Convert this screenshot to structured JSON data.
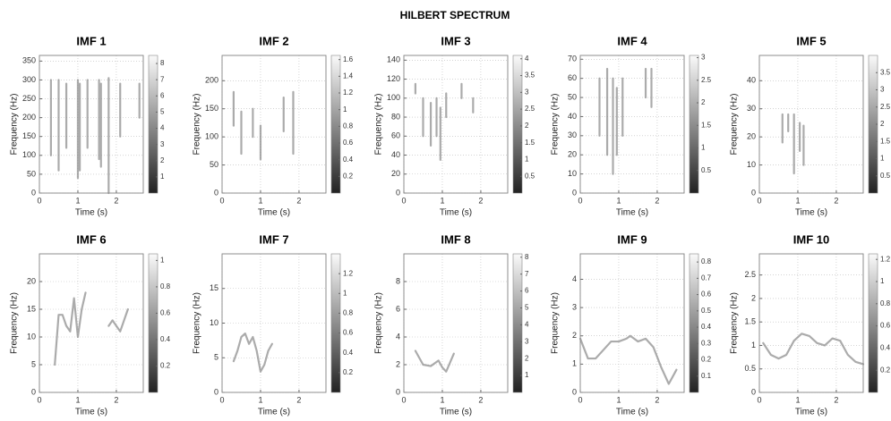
{
  "title": "HILBERT SPECTRUM",
  "chart_data": [
    {
      "type": "line",
      "title": "IMF 1",
      "xlabel": "Time (s)",
      "ylabel": "Frequency (Hz)",
      "xlim": [
        0,
        2.7
      ],
      "xticks": [
        0,
        1,
        2
      ],
      "ylim": [
        0,
        365
      ],
      "yticks": [
        0,
        50,
        100,
        150,
        200,
        250,
        300,
        350
      ],
      "grid": true,
      "trace_color": "#777",
      "colorbar": {
        "lim": [
          0,
          8.5
        ],
        "ticks": [
          1,
          2,
          3,
          4,
          5,
          6,
          7,
          8
        ]
      },
      "traces": [
        {
          "x": [
            0.3,
            0.3
          ],
          "y": [
            100,
            300
          ]
        },
        {
          "x": [
            0.5,
            0.5
          ],
          "y": [
            60,
            300
          ]
        },
        {
          "x": [
            0.7,
            0.7
          ],
          "y": [
            120,
            290
          ]
        },
        {
          "x": [
            1.0,
            1.0
          ],
          "y": [
            40,
            300
          ]
        },
        {
          "x": [
            1.05,
            1.05
          ],
          "y": [
            60,
            290
          ]
        },
        {
          "x": [
            1.25,
            1.25
          ],
          "y": [
            120,
            300
          ]
        },
        {
          "x": [
            1.55,
            1.55
          ],
          "y": [
            90,
            300
          ]
        },
        {
          "x": [
            1.6,
            1.6
          ],
          "y": [
            70,
            290
          ]
        },
        {
          "x": [
            1.8,
            1.8
          ],
          "y": [
            0,
            305
          ]
        },
        {
          "x": [
            2.1,
            2.1
          ],
          "y": [
            150,
            290
          ]
        },
        {
          "x": [
            2.6,
            2.6
          ],
          "y": [
            200,
            290
          ]
        }
      ]
    },
    {
      "type": "line",
      "title": "IMF 2",
      "xlabel": "Time (s)",
      "ylabel": "Frequency (Hz)",
      "xlim": [
        0,
        2.7
      ],
      "xticks": [
        0,
        1,
        2
      ],
      "ylim": [
        0,
        245
      ],
      "yticks": [
        0,
        50,
        100,
        150,
        200
      ],
      "grid": true,
      "trace_color": "#777",
      "colorbar": {
        "lim": [
          0,
          1.65
        ],
        "ticks": [
          0.2,
          0.4,
          0.6,
          0.8,
          1,
          1.2,
          1.4,
          1.6
        ]
      },
      "traces": [
        {
          "x": [
            0.3,
            0.3
          ],
          "y": [
            120,
            180
          ]
        },
        {
          "x": [
            0.5,
            0.5
          ],
          "y": [
            70,
            145
          ]
        },
        {
          "x": [
            0.8,
            0.8
          ],
          "y": [
            100,
            150
          ]
        },
        {
          "x": [
            1.0,
            1.0
          ],
          "y": [
            60,
            120
          ]
        },
        {
          "x": [
            1.6,
            1.6
          ],
          "y": [
            110,
            170
          ]
        },
        {
          "x": [
            1.85,
            1.85
          ],
          "y": [
            70,
            180
          ]
        }
      ]
    },
    {
      "type": "line",
      "title": "IMF 3",
      "xlabel": "Time (s)",
      "ylabel": "Frequency (Hz)",
      "xlim": [
        0,
        2.7
      ],
      "xticks": [
        0,
        1,
        2
      ],
      "ylim": [
        0,
        145
      ],
      "yticks": [
        0,
        20,
        40,
        60,
        80,
        100,
        120,
        140
      ],
      "grid": true,
      "trace_color": "#777",
      "colorbar": {
        "lim": [
          0,
          4.1
        ],
        "ticks": [
          0.5,
          1,
          1.5,
          2,
          2.5,
          3,
          3.5,
          4
        ]
      },
      "traces": [
        {
          "x": [
            0.3,
            0.3
          ],
          "y": [
            105,
            115
          ]
        },
        {
          "x": [
            0.5,
            0.5
          ],
          "y": [
            60,
            100
          ]
        },
        {
          "x": [
            0.7,
            0.7
          ],
          "y": [
            50,
            95
          ]
        },
        {
          "x": [
            0.85,
            0.85
          ],
          "y": [
            60,
            100
          ]
        },
        {
          "x": [
            0.95,
            0.95
          ],
          "y": [
            35,
            90
          ]
        },
        {
          "x": [
            1.1,
            1.1
          ],
          "y": [
            80,
            105
          ]
        },
        {
          "x": [
            1.5,
            1.5
          ],
          "y": [
            100,
            115
          ]
        },
        {
          "x": [
            1.8,
            1.8
          ],
          "y": [
            85,
            100
          ]
        }
      ]
    },
    {
      "type": "line",
      "title": "IMF 4",
      "xlabel": "Time (s)",
      "ylabel": "Frequency (Hz)",
      "xlim": [
        0,
        2.7
      ],
      "xticks": [
        0,
        1,
        2
      ],
      "ylim": [
        0,
        72
      ],
      "yticks": [
        0,
        10,
        20,
        30,
        40,
        50,
        60,
        70
      ],
      "grid": true,
      "trace_color": "#777",
      "colorbar": {
        "lim": [
          0,
          3.05
        ],
        "ticks": [
          0.5,
          1,
          1.5,
          2,
          2.5,
          3
        ]
      },
      "traces": [
        {
          "x": [
            0.5,
            0.5
          ],
          "y": [
            30,
            60
          ]
        },
        {
          "x": [
            0.7,
            0.7
          ],
          "y": [
            20,
            65
          ]
        },
        {
          "x": [
            0.85,
            0.85
          ],
          "y": [
            10,
            60
          ]
        },
        {
          "x": [
            0.95,
            0.95
          ],
          "y": [
            20,
            55
          ]
        },
        {
          "x": [
            1.1,
            1.1
          ],
          "y": [
            30,
            60
          ]
        },
        {
          "x": [
            1.7,
            1.7
          ],
          "y": [
            50,
            65
          ]
        },
        {
          "x": [
            1.85,
            1.85
          ],
          "y": [
            45,
            65
          ]
        }
      ]
    },
    {
      "type": "line",
      "title": "IMF 5",
      "xlabel": "Time (s)",
      "ylabel": "Frequency (Hz)",
      "xlim": [
        0,
        2.7
      ],
      "xticks": [
        0,
        1,
        2
      ],
      "ylim": [
        0,
        49
      ],
      "yticks": [
        0,
        10,
        20,
        30,
        40
      ],
      "grid": true,
      "trace_color": "#777",
      "colorbar": {
        "lim": [
          0,
          4
        ],
        "ticks": [
          0.5,
          1,
          1.5,
          2,
          2.5,
          3,
          3.5
        ]
      },
      "traces": [
        {
          "x": [
            0.6,
            0.6
          ],
          "y": [
            18,
            28
          ]
        },
        {
          "x": [
            0.75,
            0.75
          ],
          "y": [
            22,
            28
          ]
        },
        {
          "x": [
            0.9,
            0.9
          ],
          "y": [
            7,
            28
          ]
        },
        {
          "x": [
            1.05,
            1.05
          ],
          "y": [
            15,
            25
          ]
        },
        {
          "x": [
            1.15,
            1.15
          ],
          "y": [
            10,
            24
          ]
        }
      ]
    },
    {
      "type": "line",
      "title": "IMF 6",
      "xlabel": "Time (s)",
      "ylabel": "Frequency (Hz)",
      "xlim": [
        0,
        2.7
      ],
      "xticks": [
        0,
        1,
        2
      ],
      "ylim": [
        0,
        25
      ],
      "yticks": [
        0,
        5,
        10,
        15,
        20
      ],
      "grid": true,
      "trace_color": "#777",
      "colorbar": {
        "lim": [
          0,
          1.05
        ],
        "ticks": [
          0.2,
          0.4,
          0.6,
          0.8,
          1
        ]
      },
      "traces": [
        {
          "x": [
            0.4,
            0.5,
            0.6,
            0.7,
            0.8,
            0.9,
            1.0,
            1.1,
            1.2
          ],
          "y": [
            5,
            14,
            14,
            12,
            11,
            17,
            10,
            15,
            18
          ]
        },
        {
          "x": [
            1.8,
            1.9,
            2.0,
            2.1,
            2.3
          ],
          "y": [
            12,
            13,
            12,
            11,
            15
          ]
        }
      ]
    },
    {
      "type": "line",
      "title": "IMF 7",
      "xlabel": "Time (s)",
      "ylabel": "Frequency (Hz)",
      "xlim": [
        0,
        2.7
      ],
      "xticks": [
        0,
        1,
        2
      ],
      "ylim": [
        0,
        20
      ],
      "yticks": [
        0,
        5,
        10,
        15
      ],
      "grid": true,
      "trace_color": "#777",
      "colorbar": {
        "lim": [
          0,
          1.4
        ],
        "ticks": [
          0.2,
          0.4,
          0.6,
          0.8,
          1,
          1.2
        ]
      },
      "traces": [
        {
          "x": [
            0.3,
            0.4,
            0.5,
            0.6,
            0.7,
            0.8,
            0.9,
            1.0,
            1.1,
            1.2,
            1.3
          ],
          "y": [
            4.5,
            6,
            8,
            8.5,
            7,
            8,
            6,
            3,
            4,
            6,
            7
          ]
        }
      ]
    },
    {
      "type": "line",
      "title": "IMF 8",
      "xlabel": "Time (s)",
      "ylabel": "Frequency (Hz)",
      "xlim": [
        0,
        2.7
      ],
      "xticks": [
        0,
        1,
        2
      ],
      "ylim": [
        0,
        10
      ],
      "yticks": [
        0,
        2,
        4,
        6,
        8
      ],
      "grid": true,
      "trace_color": "#777",
      "colorbar": {
        "lim": [
          0,
          8.2
        ],
        "ticks": [
          1,
          2,
          3,
          4,
          5,
          6,
          7,
          8
        ]
      },
      "traces": [
        {
          "x": [
            0.3,
            0.5,
            0.7,
            0.9,
            1.0,
            1.1,
            1.3
          ],
          "y": [
            3,
            2,
            1.9,
            2.3,
            1.8,
            1.5,
            2.8
          ]
        }
      ]
    },
    {
      "type": "line",
      "title": "IMF 9",
      "xlabel": "Time (s)",
      "ylabel": "Frequency (Hz)",
      "xlim": [
        0,
        2.7
      ],
      "xticks": [
        0,
        1,
        2
      ],
      "ylim": [
        0,
        4.9
      ],
      "yticks": [
        0,
        1,
        2,
        3,
        4
      ],
      "grid": true,
      "trace_color": "#777",
      "colorbar": {
        "lim": [
          0,
          0.85
        ],
        "ticks": [
          0.1,
          0.2,
          0.3,
          0.4,
          0.5,
          0.6,
          0.7,
          0.8
        ]
      },
      "traces": [
        {
          "x": [
            0,
            0.2,
            0.4,
            0.6,
            0.8,
            1.0,
            1.2,
            1.3,
            1.5,
            1.7,
            1.9,
            2.1,
            2.3,
            2.5
          ],
          "y": [
            1.9,
            1.2,
            1.2,
            1.5,
            1.8,
            1.8,
            1.9,
            2.0,
            1.8,
            1.9,
            1.6,
            0.9,
            0.3,
            0.8
          ]
        }
      ]
    },
    {
      "type": "line",
      "title": "IMF 10",
      "xlabel": "Time (s)",
      "ylabel": "Frequency (Hz)",
      "xlim": [
        0,
        2.7
      ],
      "xticks": [
        0,
        1,
        2
      ],
      "ylim": [
        0,
        2.95
      ],
      "yticks": [
        0,
        0.5,
        1,
        1.5,
        2,
        2.5
      ],
      "grid": true,
      "trace_color": "#777",
      "colorbar": {
        "lim": [
          0,
          1.25
        ],
        "ticks": [
          0.2,
          0.4,
          0.6,
          0.8,
          1,
          1.2
        ]
      },
      "traces": [
        {
          "x": [
            0.1,
            0.3,
            0.5,
            0.7,
            0.9,
            1.1,
            1.3,
            1.5,
            1.7,
            1.9,
            2.1,
            2.3,
            2.5,
            2.7
          ],
          "y": [
            1.05,
            0.8,
            0.72,
            0.8,
            1.1,
            1.25,
            1.2,
            1.05,
            1.0,
            1.15,
            1.1,
            0.8,
            0.65,
            0.6
          ]
        }
      ]
    }
  ]
}
